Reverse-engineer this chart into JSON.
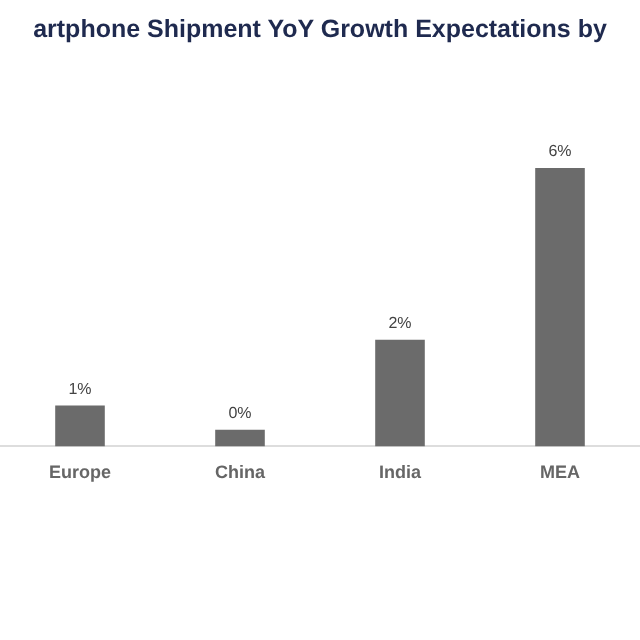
{
  "chart_data": {
    "type": "bar",
    "title": "artphone Shipment YoY Growth Expectations by",
    "categories": [
      "Europe",
      "China",
      "India",
      "MEA"
    ],
    "values": [
      0.88,
      0.36,
      2.3,
      6
    ],
    "value_labels": [
      "1%",
      "0%",
      "2%",
      "6%"
    ],
    "color": "#6b6b6b",
    "grid": false,
    "legend": false
  }
}
